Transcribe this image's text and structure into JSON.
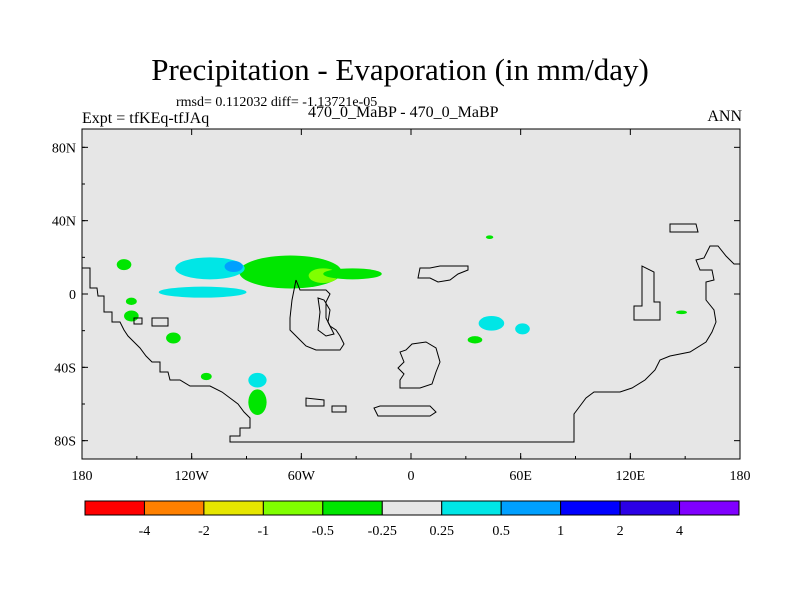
{
  "title": "Precipitation - Evaporation (in mm/day)",
  "stats_line": "rmsd= 0.112032 diff= -1.13721e-05",
  "experiment_label": "Expt = tfKEq-tfJAq",
  "case_label": "470_0_MaBP - 470_0_MaBP",
  "season_label": "ANN",
  "chart_data": {
    "type": "heatmap",
    "title": "Precipitation - Evaporation (in mm/day)",
    "xlim": [
      -180,
      180
    ],
    "ylim": [
      -90,
      90
    ],
    "grid": false,
    "x_ticks": [
      -180,
      -120,
      -60,
      0,
      60,
      120,
      180
    ],
    "x_tick_labels": [
      "180",
      "120W",
      "60W",
      "0",
      "60E",
      "120E",
      "180"
    ],
    "y_ticks": [
      80,
      40,
      0,
      -40,
      -80
    ],
    "y_tick_labels": [
      "80N",
      "40N",
      "0",
      "40S",
      "80S"
    ],
    "field_background": "#e6e6e6",
    "colorbar": {
      "levels": [
        "-4",
        "-2",
        "-1",
        "-0.5",
        "-0.25",
        "0.25",
        "0.5",
        "1",
        "2",
        "4"
      ],
      "colors": [
        "#ff0000",
        "#ff8000",
        "#e6e600",
        "#80ff00",
        "#00e600",
        "#e6e6e6",
        "#00e6e6",
        "#00a0ff",
        "#0000ff",
        "#2b00e6",
        "#8000ff"
      ]
    },
    "anomalies": [
      {
        "lon": -157,
        "lat": 16,
        "rx": 4,
        "ry": 3,
        "class": "-0.5 to -0.25",
        "color": "#00e600"
      },
      {
        "lon": -153,
        "lat": -4,
        "rx": 3,
        "ry": 2,
        "class": "-0.5 to -0.25",
        "color": "#00e600"
      },
      {
        "lon": -153,
        "lat": -12,
        "rx": 4,
        "ry": 3,
        "class": "-0.5 to -0.25",
        "color": "#00e600"
      },
      {
        "lon": -130,
        "lat": -24,
        "rx": 4,
        "ry": 3,
        "class": "-0.5 to -0.25",
        "color": "#00e600"
      },
      {
        "lon": -112,
        "lat": -45,
        "rx": 3,
        "ry": 2,
        "class": "-0.5 to -0.25",
        "color": "#00e600"
      },
      {
        "lon": -84,
        "lat": -59,
        "rx": 5,
        "ry": 7,
        "class": "-0.5 to -0.25",
        "color": "#00e600"
      },
      {
        "lon": -66,
        "lat": 12,
        "rx": 28,
        "ry": 9,
        "class": "-0.5 to -0.25",
        "color": "#00e600"
      },
      {
        "lon": -48,
        "lat": 10,
        "rx": 8,
        "ry": 4,
        "class": "-1 to -0.5",
        "color": "#80ff00"
      },
      {
        "lon": -32,
        "lat": 11,
        "rx": 16,
        "ry": 3,
        "class": "-0.5 to -0.25",
        "color": "#00e600"
      },
      {
        "lon": -110,
        "lat": 14,
        "rx": 19,
        "ry": 6,
        "class": "0.25 to 0.5",
        "color": "#00e6e6"
      },
      {
        "lon": -114,
        "lat": 1,
        "rx": 24,
        "ry": 3,
        "class": "0.25 to 0.5",
        "color": "#00e6e6"
      },
      {
        "lon": -97,
        "lat": 15,
        "rx": 5,
        "ry": 3,
        "class": "0.5 to 1",
        "color": "#00a0ff"
      },
      {
        "lon": -84,
        "lat": -47,
        "rx": 5,
        "ry": 4,
        "class": "0.25 to 0.5",
        "color": "#00e6e6"
      },
      {
        "lon": 44,
        "lat": -16,
        "rx": 7,
        "ry": 4,
        "class": "0.25 to 0.5",
        "color": "#00e6e6"
      },
      {
        "lon": 61,
        "lat": -19,
        "rx": 4,
        "ry": 3,
        "class": "0.25 to 0.5",
        "color": "#00e6e6"
      },
      {
        "lon": 35,
        "lat": -25,
        "rx": 4,
        "ry": 2,
        "class": "-0.5 to -0.25",
        "color": "#00e600"
      },
      {
        "lon": 43,
        "lat": 31,
        "rx": 2,
        "ry": 1,
        "class": "-0.5 to -0.25",
        "color": "#00e600"
      },
      {
        "lon": 148,
        "lat": -10,
        "rx": 3,
        "ry": 1,
        "class": "-0.5 to -0.25",
        "color": "#00e600"
      }
    ]
  }
}
